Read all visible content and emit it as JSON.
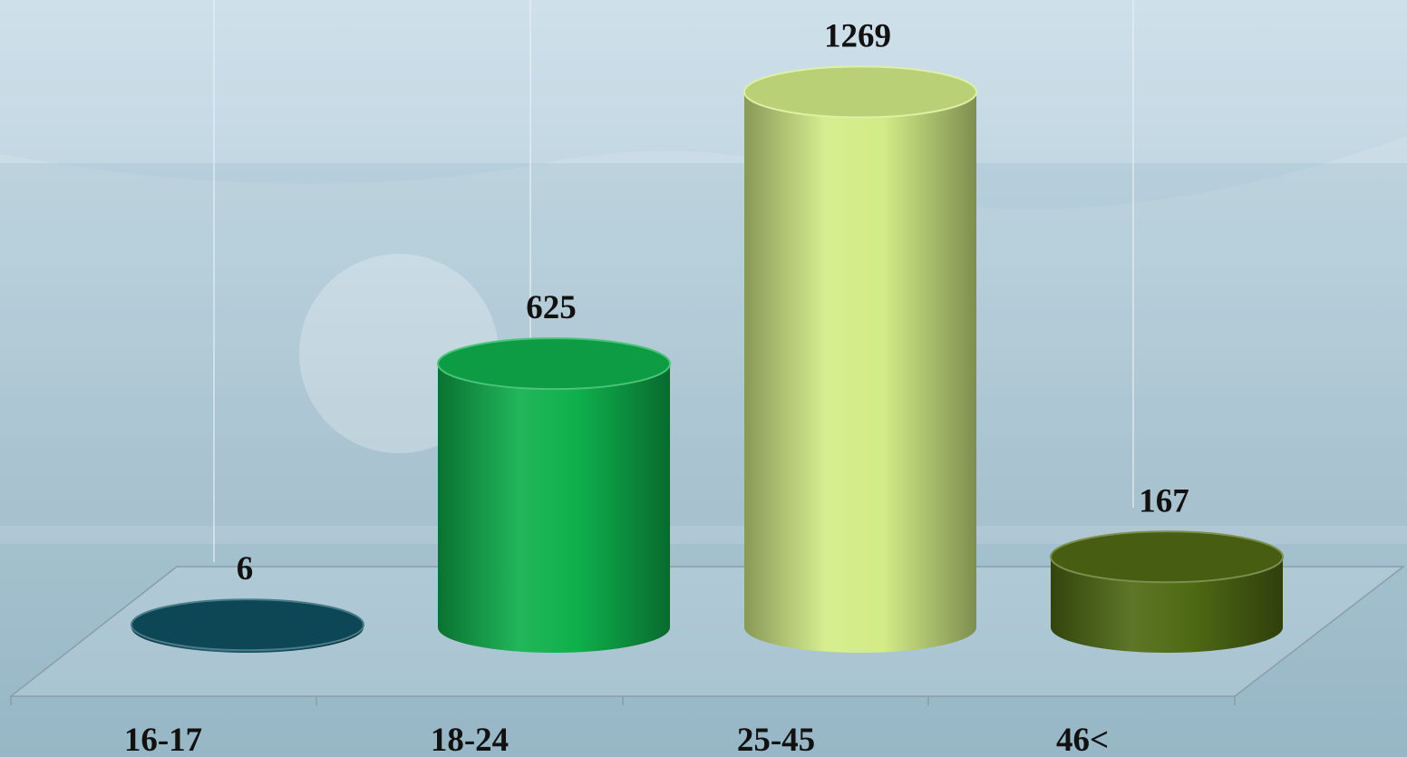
{
  "chart_data": {
    "type": "bar",
    "style": "3d-cylinder",
    "categories": [
      "16-17",
      "18-24",
      "25-45",
      "46<"
    ],
    "values": [
      6,
      625,
      1269,
      167
    ],
    "data_labels": [
      "6",
      "625",
      "1269",
      "167"
    ],
    "ylim": [
      0,
      1300
    ],
    "grid": false,
    "legend": "none",
    "colors": [
      "#0f4f60",
      "#0fb04c",
      "#d2ec86",
      "#4f6a14"
    ]
  }
}
